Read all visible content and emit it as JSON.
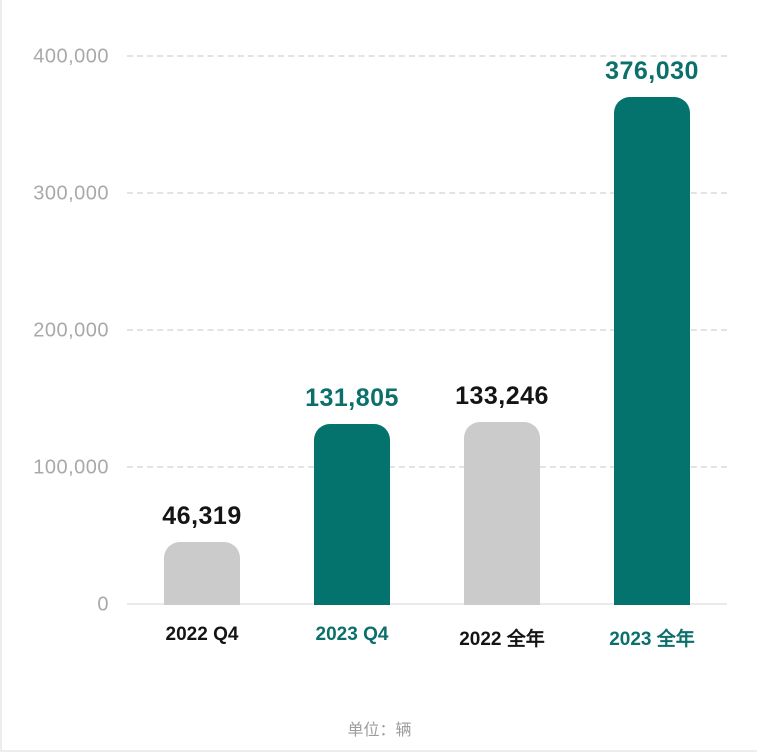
{
  "page": {
    "background": "#ffffff",
    "border_color": "#ededed"
  },
  "chart_data": {
    "type": "bar",
    "title": "",
    "xlabel": "",
    "ylabel": "",
    "unit_note": "单位：辆",
    "categories": [
      "2022 Q4",
      "2023 Q4",
      "2022 全年",
      "2023 全年"
    ],
    "values": [
      46319,
      131805,
      133246,
      376030
    ],
    "value_labels": [
      "46,319",
      "131,805",
      "133,246",
      "376,030"
    ],
    "bar_colors": [
      "#cbcbcb",
      "#04726d",
      "#cbcbcb",
      "#04726d"
    ],
    "value_label_colors": [
      "#141414",
      "#0b6f6b",
      "#141414",
      "#0b6f6b"
    ],
    "category_label_colors": [
      "#141414",
      "#0b6f6b",
      "#141414",
      "#0b6f6b"
    ],
    "ylim": [
      0,
      400000
    ],
    "yticks": [
      0,
      100000,
      200000,
      300000,
      400000
    ],
    "ytick_labels": [
      "0",
      "100,000",
      "200,000",
      "300,000",
      "400,000"
    ],
    "grid": "horizontal-dashed",
    "legend": "none",
    "colors": {
      "teal": "#04726d",
      "gray_bar": "#cbcbcb",
      "axis_text": "#a9a9a9",
      "gridline": "#e3e3e3",
      "footer_text": "#9d9d9d",
      "black_text": "#141414"
    }
  }
}
